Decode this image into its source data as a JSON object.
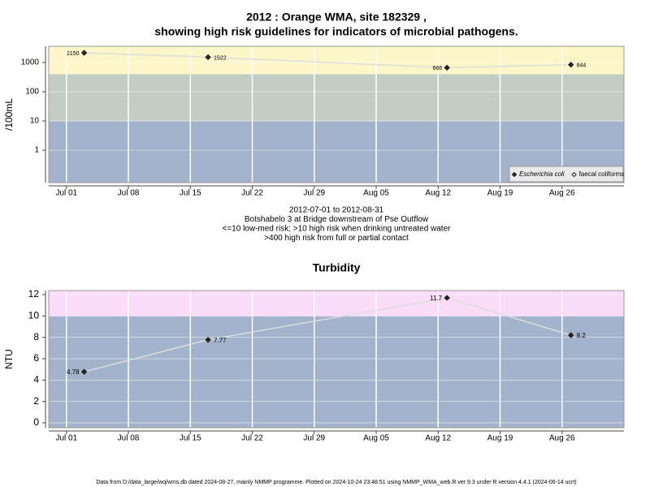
{
  "chart_data": [
    {
      "type": "line",
      "title": [
        "2012 : Orange WMA, site 182329 ,",
        "showing high risk guidelines for indicators of microbial pathogens."
      ],
      "ylabel": "/100mL",
      "log_y": true,
      "x": [
        "2012-07-03",
        "2012-07-17",
        "2012-08-13",
        "2012-08-27"
      ],
      "series": [
        {
          "name": "Escherichia coli",
          "color": "#222222",
          "marker": "filled",
          "italic": true,
          "values": [
            2150,
            1522,
            666,
            844
          ]
        },
        {
          "name": "faecal coliforms",
          "color": "#222222",
          "marker": "open",
          "italic": false,
          "values": [
            null,
            null,
            null,
            null
          ]
        }
      ],
      "xlim": [
        "2012-06-29",
        "2012-09-02"
      ],
      "xticks": [
        {
          "value": "2012-07-01",
          "label": "Jul 01"
        },
        {
          "value": "2012-07-08",
          "label": "Jul 08"
        },
        {
          "value": "2012-07-15",
          "label": "Jul 15"
        },
        {
          "value": "2012-07-22",
          "label": "Jul 22"
        },
        {
          "value": "2012-07-29",
          "label": "Jul 29"
        },
        {
          "value": "2012-08-05",
          "label": "Aug 05"
        },
        {
          "value": "2012-08-12",
          "label": "Aug 12"
        },
        {
          "value": "2012-08-19",
          "label": "Aug 19"
        },
        {
          "value": "2012-08-26",
          "label": "Aug 26"
        }
      ],
      "ylim": [
        0.078,
        3600
      ],
      "yticks": [
        1,
        10,
        100,
        1000
      ],
      "thresholds": [
        10,
        400
      ],
      "band_colors": [
        "#a3b3cc",
        "#c4cdc3",
        "#fdf6c8"
      ],
      "line_color": "#dddddd",
      "grid": true,
      "legend": "bottom-right"
    },
    {
      "type": "line",
      "title": [
        "Turbidity"
      ],
      "ylabel": "NTU",
      "log_y": false,
      "x": [
        "2012-07-03",
        "2012-07-17",
        "2012-08-13",
        "2012-08-27"
      ],
      "series": [
        {
          "name": "Turbidity",
          "color": "#222222",
          "marker": "filled",
          "italic": false,
          "values": [
            4.78,
            7.77,
            11.7,
            8.2
          ]
        }
      ],
      "xlim": [
        "2012-06-29",
        "2012-09-02"
      ],
      "xticks": [
        {
          "value": "2012-07-01",
          "label": "Jul 01"
        },
        {
          "value": "2012-07-08",
          "label": "Jul 08"
        },
        {
          "value": "2012-07-15",
          "label": "Jul 15"
        },
        {
          "value": "2012-07-22",
          "label": "Jul 22"
        },
        {
          "value": "2012-07-29",
          "label": "Jul 29"
        },
        {
          "value": "2012-08-05",
          "label": "Aug 05"
        },
        {
          "value": "2012-08-12",
          "label": "Aug 12"
        },
        {
          "value": "2012-08-19",
          "label": "Aug 19"
        },
        {
          "value": "2012-08-26",
          "label": "Aug 26"
        }
      ],
      "ylim": [
        -0.46,
        12.38
      ],
      "yticks": [
        0,
        2,
        4,
        6,
        8,
        10,
        12
      ],
      "thresholds": [
        10
      ],
      "band_colors": [
        "#a3b3cc",
        "#fadcf8"
      ],
      "line_color": "#dddddd",
      "grid": true,
      "legend": null
    }
  ],
  "caption": [
    "2012-07-01 to 2012-08-31",
    "Botshabelo 3 at Bridge downstream of Pse Outflow",
    "<=10 low-med risk; >10 high risk when drinking untreated water",
    ">400 high risk from full or partial contact"
  ],
  "footer": "Data from D:/data_large/wq/wms.db dated 2024-08-27, mainly NMMP programme. Plotted on 2024-10-24 23:48:51 using NMMP_WMA_web.R ver 9.3 under R version 4.4.1 (2024-06-14 ucrt)"
}
